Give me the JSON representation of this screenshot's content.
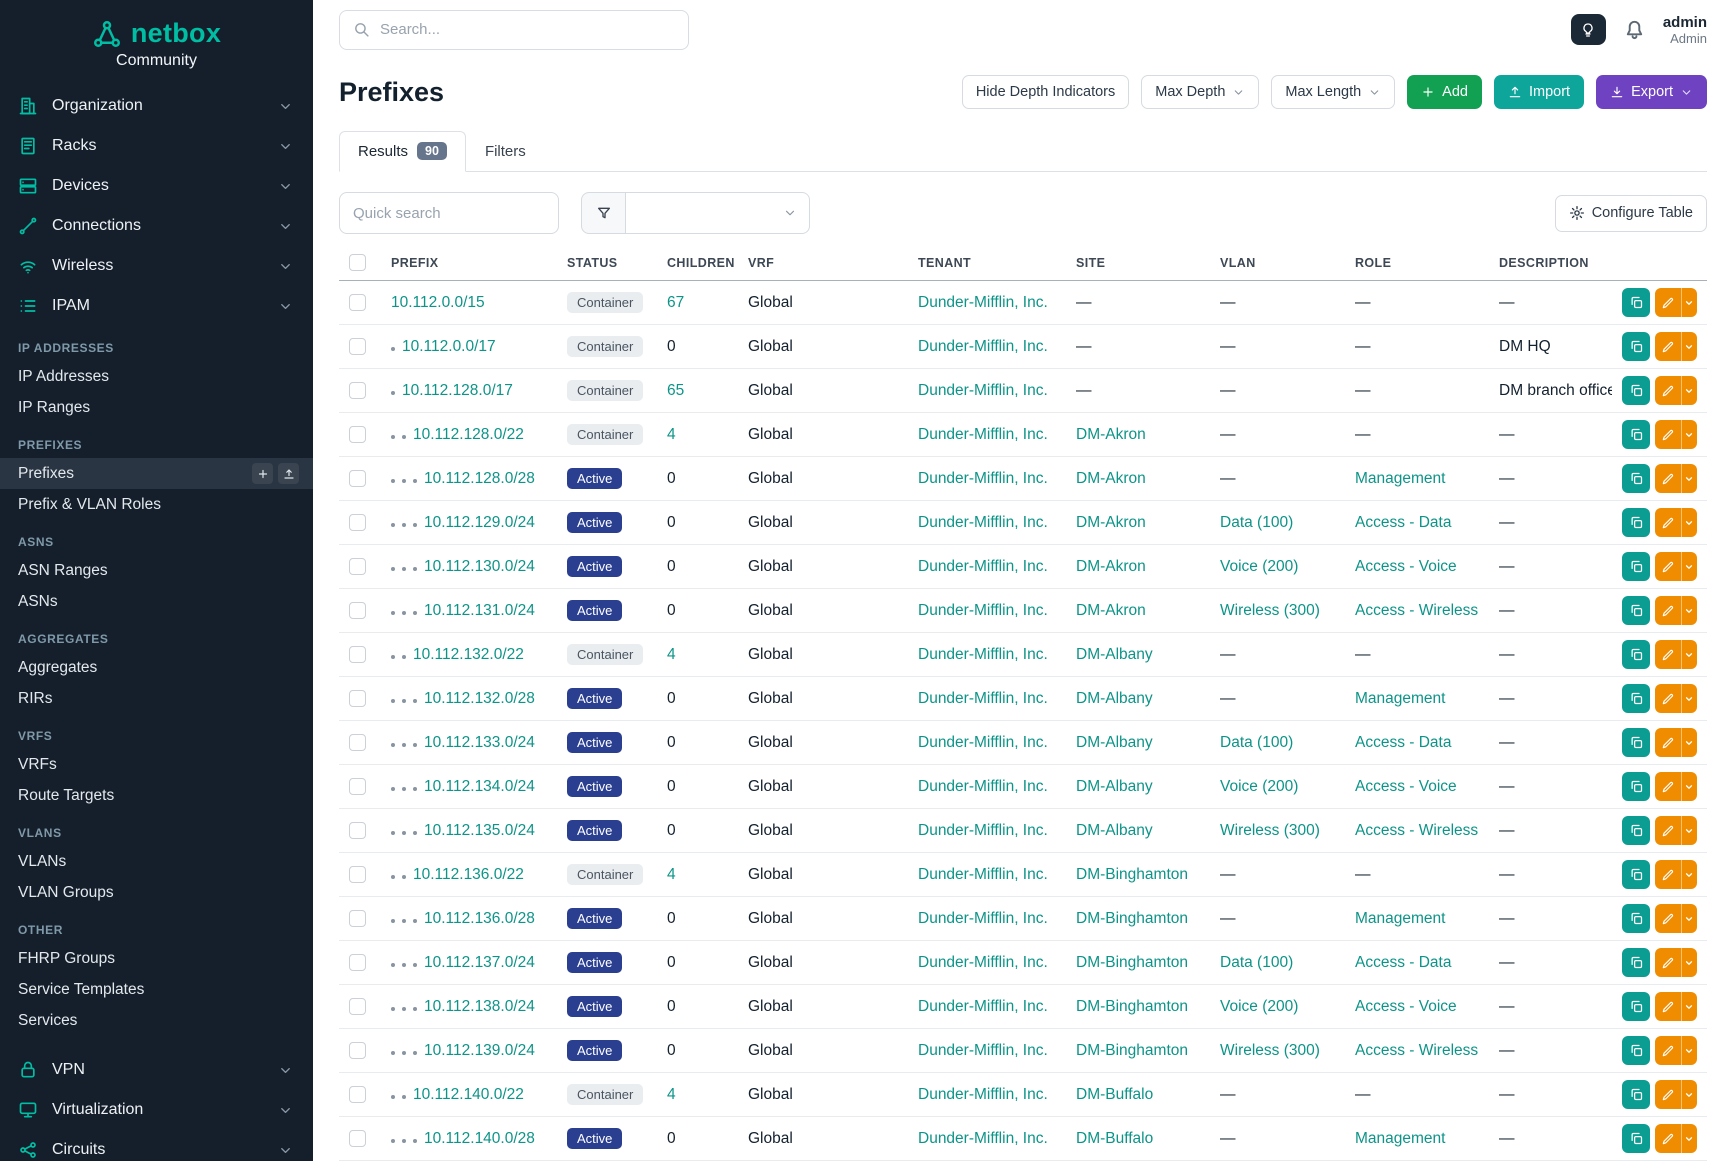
{
  "colors": {
    "brand_teal": "#00bea3",
    "link_teal": "#0d9488",
    "sidebar_bg": "#151f2c",
    "active_badge_blue": "#2b3f90",
    "container_badge_gray": "#e9edf0",
    "add_green": "#12a152",
    "import_teal": "#0ea59b",
    "export_purple": "#6f42c1",
    "copy_teal": "#0b9d92",
    "edit_orange": "#f08c00"
  },
  "sidebar": {
    "brand": "netbox",
    "subtitle": "Community",
    "top_items": [
      {
        "label": "Organization",
        "icon": "building-icon"
      },
      {
        "label": "Racks",
        "icon": "rack-icon"
      },
      {
        "label": "Devices",
        "icon": "device-icon"
      },
      {
        "label": "Connections",
        "icon": "connections-icon"
      },
      {
        "label": "Wireless",
        "icon": "wifi-icon"
      },
      {
        "label": "IPAM",
        "icon": "ipam-icon"
      }
    ],
    "sections": [
      {
        "header": "IP ADDRESSES",
        "items": [
          {
            "label": "IP Addresses"
          },
          {
            "label": "IP Ranges"
          }
        ]
      },
      {
        "header": "PREFIXES",
        "items": [
          {
            "label": "Prefixes",
            "active": true
          },
          {
            "label": "Prefix & VLAN Roles"
          }
        ]
      },
      {
        "header": "ASNS",
        "items": [
          {
            "label": "ASN Ranges"
          },
          {
            "label": "ASNs"
          }
        ]
      },
      {
        "header": "AGGREGATES",
        "items": [
          {
            "label": "Aggregates"
          },
          {
            "label": "RIRs"
          }
        ]
      },
      {
        "header": "VRFS",
        "items": [
          {
            "label": "VRFs"
          },
          {
            "label": "Route Targets"
          }
        ]
      },
      {
        "header": "VLANS",
        "items": [
          {
            "label": "VLANs"
          },
          {
            "label": "VLAN Groups"
          }
        ]
      },
      {
        "header": "OTHER",
        "items": [
          {
            "label": "FHRP Groups"
          },
          {
            "label": "Service Templates"
          },
          {
            "label": "Services"
          }
        ]
      }
    ],
    "bottom_items": [
      {
        "label": "VPN",
        "icon": "vpn-icon"
      },
      {
        "label": "Virtualization",
        "icon": "virtualization-icon"
      },
      {
        "label": "Circuits",
        "icon": "circuits-icon"
      }
    ]
  },
  "topbar": {
    "search_placeholder": "Search...",
    "user_name": "admin",
    "user_role": "Admin"
  },
  "page": {
    "title": "Prefixes",
    "buttons": {
      "hide_depth": "Hide Depth Indicators",
      "max_depth": "Max Depth",
      "max_length": "Max Length",
      "add": "Add",
      "import": "Import",
      "export": "Export"
    },
    "tabs": [
      {
        "label": "Results",
        "badge": "90",
        "active": true
      },
      {
        "label": "Filters"
      }
    ],
    "quick_search_placeholder": "Quick search",
    "configure_table_label": "Configure Table"
  },
  "table": {
    "headers": [
      "PREFIX",
      "STATUS",
      "CHILDREN",
      "VRF",
      "TENANT",
      "SITE",
      "VLAN",
      "ROLE",
      "DESCRIPTION"
    ],
    "rows": [
      {
        "depth": 0,
        "prefix": "10.112.0.0/15",
        "status": "Container",
        "children": "67",
        "vrf": "Global",
        "tenant": "Dunder-Mifflin, Inc.",
        "site": "—",
        "vlan": "—",
        "role": "—",
        "description": "—"
      },
      {
        "depth": 1,
        "prefix": "10.112.0.0/17",
        "status": "Container",
        "children": "0",
        "vrf": "Global",
        "tenant": "Dunder-Mifflin, Inc.",
        "site": "—",
        "vlan": "—",
        "role": "—",
        "description": "DM HQ"
      },
      {
        "depth": 1,
        "prefix": "10.112.128.0/17",
        "status": "Container",
        "children": "65",
        "vrf": "Global",
        "tenant": "Dunder-Mifflin, Inc.",
        "site": "—",
        "vlan": "—",
        "role": "—",
        "description": "DM branch offices"
      },
      {
        "depth": 2,
        "prefix": "10.112.128.0/22",
        "status": "Container",
        "children": "4",
        "vrf": "Global",
        "tenant": "Dunder-Mifflin, Inc.",
        "site": "DM-Akron",
        "vlan": "—",
        "role": "—",
        "description": "—"
      },
      {
        "depth": 3,
        "prefix": "10.112.128.0/28",
        "status": "Active",
        "children": "0",
        "vrf": "Global",
        "tenant": "Dunder-Mifflin, Inc.",
        "site": "DM-Akron",
        "vlan": "—",
        "role": "Management",
        "description": "—"
      },
      {
        "depth": 3,
        "prefix": "10.112.129.0/24",
        "status": "Active",
        "children": "0",
        "vrf": "Global",
        "tenant": "Dunder-Mifflin, Inc.",
        "site": "DM-Akron",
        "vlan": "Data (100)",
        "role": "Access - Data",
        "description": "—"
      },
      {
        "depth": 3,
        "prefix": "10.112.130.0/24",
        "status": "Active",
        "children": "0",
        "vrf": "Global",
        "tenant": "Dunder-Mifflin, Inc.",
        "site": "DM-Akron",
        "vlan": "Voice (200)",
        "role": "Access - Voice",
        "description": "—"
      },
      {
        "depth": 3,
        "prefix": "10.112.131.0/24",
        "status": "Active",
        "children": "0",
        "vrf": "Global",
        "tenant": "Dunder-Mifflin, Inc.",
        "site": "DM-Akron",
        "vlan": "Wireless (300)",
        "role": "Access - Wireless",
        "description": "—"
      },
      {
        "depth": 2,
        "prefix": "10.112.132.0/22",
        "status": "Container",
        "children": "4",
        "vrf": "Global",
        "tenant": "Dunder-Mifflin, Inc.",
        "site": "DM-Albany",
        "vlan": "—",
        "role": "—",
        "description": "—"
      },
      {
        "depth": 3,
        "prefix": "10.112.132.0/28",
        "status": "Active",
        "children": "0",
        "vrf": "Global",
        "tenant": "Dunder-Mifflin, Inc.",
        "site": "DM-Albany",
        "vlan": "—",
        "role": "Management",
        "description": "—"
      },
      {
        "depth": 3,
        "prefix": "10.112.133.0/24",
        "status": "Active",
        "children": "0",
        "vrf": "Global",
        "tenant": "Dunder-Mifflin, Inc.",
        "site": "DM-Albany",
        "vlan": "Data (100)",
        "role": "Access - Data",
        "description": "—"
      },
      {
        "depth": 3,
        "prefix": "10.112.134.0/24",
        "status": "Active",
        "children": "0",
        "vrf": "Global",
        "tenant": "Dunder-Mifflin, Inc.",
        "site": "DM-Albany",
        "vlan": "Voice (200)",
        "role": "Access - Voice",
        "description": "—"
      },
      {
        "depth": 3,
        "prefix": "10.112.135.0/24",
        "status": "Active",
        "children": "0",
        "vrf": "Global",
        "tenant": "Dunder-Mifflin, Inc.",
        "site": "DM-Albany",
        "vlan": "Wireless (300)",
        "role": "Access - Wireless",
        "description": "—"
      },
      {
        "depth": 2,
        "prefix": "10.112.136.0/22",
        "status": "Container",
        "children": "4",
        "vrf": "Global",
        "tenant": "Dunder-Mifflin, Inc.",
        "site": "DM-Binghamton",
        "vlan": "—",
        "role": "—",
        "description": "—"
      },
      {
        "depth": 3,
        "prefix": "10.112.136.0/28",
        "status": "Active",
        "children": "0",
        "vrf": "Global",
        "tenant": "Dunder-Mifflin, Inc.",
        "site": "DM-Binghamton",
        "vlan": "—",
        "role": "Management",
        "description": "—"
      },
      {
        "depth": 3,
        "prefix": "10.112.137.0/24",
        "status": "Active",
        "children": "0",
        "vrf": "Global",
        "tenant": "Dunder-Mifflin, Inc.",
        "site": "DM-Binghamton",
        "vlan": "Data (100)",
        "role": "Access - Data",
        "description": "—"
      },
      {
        "depth": 3,
        "prefix": "10.112.138.0/24",
        "status": "Active",
        "children": "0",
        "vrf": "Global",
        "tenant": "Dunder-Mifflin, Inc.",
        "site": "DM-Binghamton",
        "vlan": "Voice (200)",
        "role": "Access - Voice",
        "description": "—"
      },
      {
        "depth": 3,
        "prefix": "10.112.139.0/24",
        "status": "Active",
        "children": "0",
        "vrf": "Global",
        "tenant": "Dunder-Mifflin, Inc.",
        "site": "DM-Binghamton",
        "vlan": "Wireless (300)",
        "role": "Access - Wireless",
        "description": "—"
      },
      {
        "depth": 2,
        "prefix": "10.112.140.0/22",
        "status": "Container",
        "children": "4",
        "vrf": "Global",
        "tenant": "Dunder-Mifflin, Inc.",
        "site": "DM-Buffalo",
        "vlan": "—",
        "role": "—",
        "description": "—"
      },
      {
        "depth": 3,
        "prefix": "10.112.140.0/28",
        "status": "Active",
        "children": "0",
        "vrf": "Global",
        "tenant": "Dunder-Mifflin, Inc.",
        "site": "DM-Buffalo",
        "vlan": "—",
        "role": "Management",
        "description": "—"
      }
    ]
  }
}
